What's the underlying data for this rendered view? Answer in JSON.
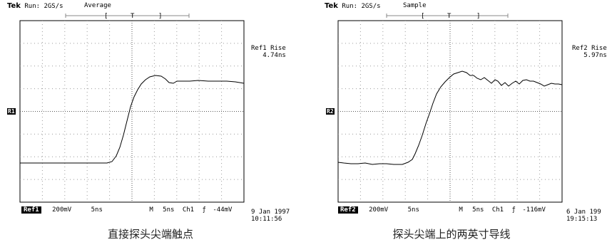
{
  "panels": [
    {
      "brand": "Tek",
      "run": "Run: 2GS/s",
      "mode": "Average",
      "trigger_bar": "[  T  ]",
      "measure_label": "Ref1 Rise",
      "measure_value": "4.74ns",
      "ref_marker": "R1",
      "status": {
        "ref": "Ref1",
        "volts": "200mV",
        "time": "5ns",
        "m": "M",
        "mtime": "5ns",
        "ch": "Ch1",
        "edge": "ƒ",
        "level": "-44mV"
      },
      "date": "9 Jan 1997",
      "time": "10:11:56",
      "caption": "直接探头尖端触点"
    },
    {
      "brand": "Tek",
      "run": "Run: 2GS/s",
      "mode": "Sample",
      "trigger_bar": "[  T  ]",
      "measure_label": "Ref2 Rise",
      "measure_value": "5.97ns",
      "ref_marker": "R2",
      "status": {
        "ref": "Ref2",
        "volts": "200mV",
        "time": "5ns",
        "m": "M",
        "mtime": "5ns",
        "ch": "Ch1",
        "edge": "ƒ",
        "level": "-116mV"
      },
      "date": "6 Jan 199",
      "time": "19:15:13",
      "caption": "探头尖端上的两英寸导线"
    }
  ]
}
